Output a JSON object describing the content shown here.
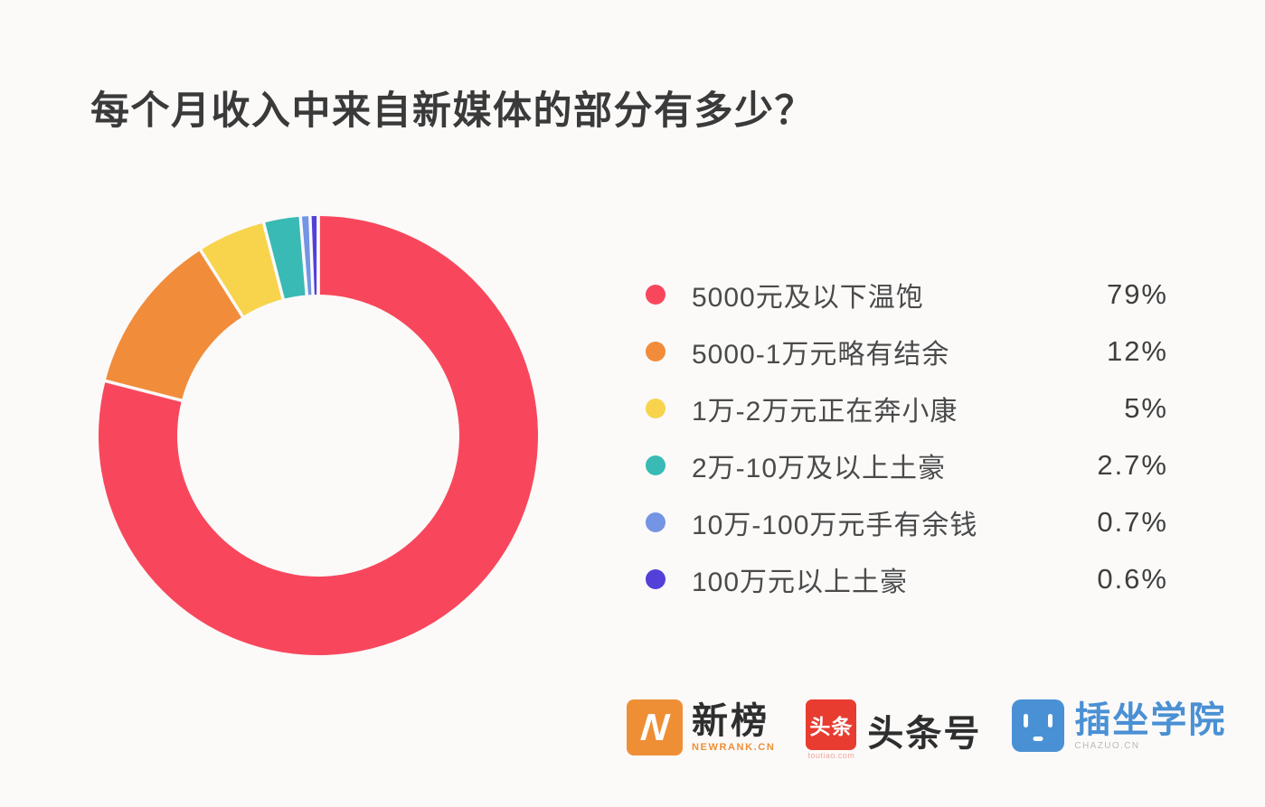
{
  "page": {
    "background": "#fbfaf9"
  },
  "title": "每个月收入中来自新媒体的部分有多少？",
  "chart_data": {
    "type": "pie",
    "subtype": "donut",
    "title": "每个月收入中来自新媒体的部分有多少？",
    "categories": [
      "5000元及以下温饱",
      "5000-1万元略有结余",
      "1万-2万元正在奔小康",
      "2万-10万及以上土豪",
      "10万-100万元手有余钱",
      "100万元以上土豪"
    ],
    "values": [
      79,
      12,
      5,
      2.7,
      0.7,
      0.6
    ],
    "value_labels": [
      "79%",
      "12%",
      "5%",
      "2.7%",
      "0.7%",
      "0.6%"
    ],
    "colors": [
      "#f8475c",
      "#f18c3b",
      "#f7d44c",
      "#39bab4",
      "#7494e4",
      "#5240d9"
    ],
    "start_at": "top",
    "direction": "clockwise",
    "inner_radius_ratio": 0.64,
    "separator_color": "#fbfaf9",
    "legend_position": "right"
  },
  "footer_logos": {
    "newrank": {
      "badge_letter": "N",
      "badge_color": "#ef8f35",
      "name": "新榜",
      "sub": "NEWRANK.CN"
    },
    "toutiao": {
      "badge": "头条",
      "badge_color": "#e83c30",
      "name": "头条号",
      "sub": "toutiao.com"
    },
    "chazuo": {
      "badge_color": "#4a90d4",
      "name": "插坐学院",
      "sub": "CHAZUO.CN"
    }
  }
}
